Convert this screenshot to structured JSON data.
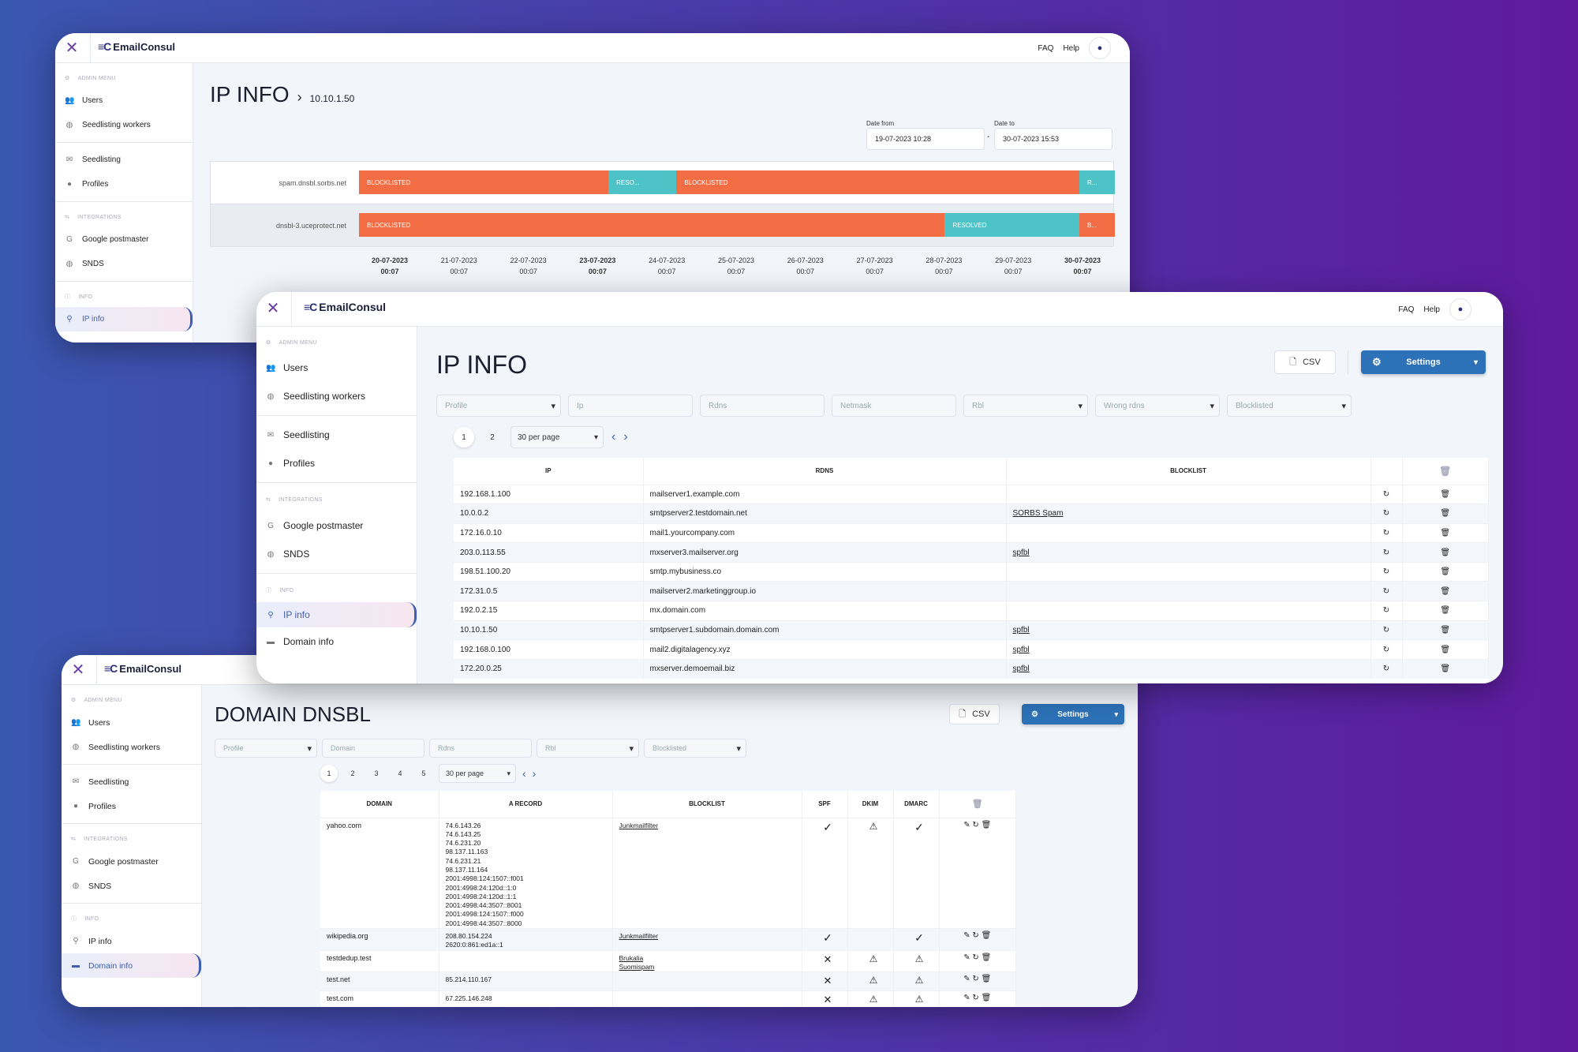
{
  "brand": "EmailConsul",
  "topbar": {
    "faq": "FAQ",
    "help": "Help"
  },
  "sidebar": {
    "admin_header": "ADMIN MENU",
    "users": "Users",
    "seedlisting_workers": "Seedlisting workers",
    "seedlisting": "Seedlisting",
    "profiles": "Profiles",
    "integrations_header": "INTEGRATIONS",
    "google_postmaster": "Google postmaster",
    "snds": "SNDS",
    "info_header": "INFO",
    "ip_info": "IP info",
    "domain_info": "Domain info"
  },
  "window1": {
    "title": "IP INFO",
    "breadcrumb": "10.10.1.50",
    "date_from_label": "Date from",
    "date_from": "19-07-2023 10:28",
    "date_to_label": "Date to",
    "date_to": "30-07-2023 15:53",
    "rows": [
      {
        "label": "spam.dnsbl.sorbs.net",
        "segments": [
          {
            "status": "BLOCKLISTED",
            "from": 0,
            "to": 0.33
          },
          {
            "status": "RESO...",
            "from": 0.33,
            "to": 0.42
          },
          {
            "status": "BLOCKLISTED",
            "from": 0.42,
            "to": 0.953
          },
          {
            "status": "R...",
            "from": 0.953,
            "to": 1
          }
        ]
      },
      {
        "label": "dnsbl-3.uceprotect.net",
        "segments": [
          {
            "status": "BLOCKLISTED",
            "from": 0,
            "to": 0.775
          },
          {
            "status": "RESOLVED",
            "from": 0.775,
            "to": 0.953
          },
          {
            "status": "B...",
            "from": 0.953,
            "to": 1
          }
        ]
      }
    ],
    "ticks": [
      {
        "date": "20-07-2023",
        "time": "00:07",
        "bold": true
      },
      {
        "date": "21-07-2023",
        "time": "00:07",
        "bold": false
      },
      {
        "date": "22-07-2023",
        "time": "00:07",
        "bold": false
      },
      {
        "date": "23-07-2023",
        "time": "00:07",
        "bold": true
      },
      {
        "date": "24-07-2023",
        "time": "00:07",
        "bold": false
      },
      {
        "date": "25-07-2023",
        "time": "00:07",
        "bold": false
      },
      {
        "date": "26-07-2023",
        "time": "00:07",
        "bold": false
      },
      {
        "date": "27-07-2023",
        "time": "00:07",
        "bold": false
      },
      {
        "date": "28-07-2023",
        "time": "00:07",
        "bold": false
      },
      {
        "date": "29-07-2023",
        "time": "00:07",
        "bold": false
      },
      {
        "date": "30-07-2023",
        "time": "00:07",
        "bold": true
      }
    ]
  },
  "window2": {
    "title": "IP INFO",
    "csv": "CSV",
    "settings": "Settings",
    "filters": {
      "profile": "Profile",
      "ip": "Ip",
      "rdns": "Rdns",
      "netmask": "Netmask",
      "rbl": "Rbl",
      "wrong_rdns": "Wrong rdns",
      "blocklisted": "Blocklisted"
    },
    "pages": [
      "1",
      "2"
    ],
    "per_page": "30 per page",
    "columns": {
      "ip": "IP",
      "rdns": "RDNS",
      "blocklist": "BLOCKLIST"
    },
    "rows": [
      {
        "ip": "192.168.1.100",
        "rdns": "mailserver1.example.com",
        "blocklist": ""
      },
      {
        "ip": "10.0.0.2",
        "rdns": "smtpserver2.testdomain.net",
        "blocklist": "SORBS Spam"
      },
      {
        "ip": "172.16.0.10",
        "rdns": "mail1.yourcompany.com",
        "blocklist": ""
      },
      {
        "ip": "203.0.113.55",
        "rdns": "mxserver3.mailserver.org",
        "blocklist": "spfbl"
      },
      {
        "ip": "198.51.100.20",
        "rdns": "smtp.mybusiness.co",
        "blocklist": ""
      },
      {
        "ip": "172.31.0.5",
        "rdns": "mailserver2.marketinggroup.io",
        "blocklist": ""
      },
      {
        "ip": "192.0.2.15",
        "rdns": "mx.domain.com",
        "blocklist": ""
      },
      {
        "ip": "10.10.1.50",
        "rdns": "smtpserver1.subdomain.domain.com",
        "blocklist": "spfbl"
      },
      {
        "ip": "192.168.0.100",
        "rdns": "mail2.digitalagency.xyz",
        "blocklist": "spfbl"
      },
      {
        "ip": "172.20.0.25",
        "rdns": "mxserver.demoemail.biz",
        "blocklist": "spfbl"
      }
    ]
  },
  "window3": {
    "title": "DOMAIN DNSBL",
    "csv": "CSV",
    "settings": "Settings",
    "filters": {
      "profile": "Profile",
      "domain": "Domain",
      "rdns": "Rdns",
      "rbl": "Rbl",
      "blocklisted": "Blocklisted"
    },
    "pages": [
      "1",
      "2",
      "3",
      "4",
      "5"
    ],
    "per_page": "30 per page",
    "columns": {
      "domain": "DOMAIN",
      "a_record": "A RECORD",
      "blocklist": "BLOCKLIST",
      "spf": "SPF",
      "dkim": "DKIM",
      "dmarc": "DMARC"
    },
    "rows": [
      {
        "domain": "yahoo.com",
        "a_record": "74.6.143.26\n74.6.143.25\n74.6.231.20\n98.137.11.163\n74.6.231.21\n98.137.11.164\n2001:4998:124:1507::f001\n2001:4998:24:120d::1:0\n2001:4998:24:120d::1:1\n2001:4998:44:3507::8001\n2001:4998:124:1507::f000\n2001:4998:44:3507::8000",
        "blocklist": "Junkmailfilter",
        "spf": "check",
        "dkim": "warn",
        "dmarc": "check"
      },
      {
        "domain": "wikipedia.org",
        "a_record": "208.80.154.224\n2620:0:861:ed1a::1",
        "blocklist": "Junkmailfilter",
        "spf": "check",
        "dkim": "",
        "dmarc": "check"
      },
      {
        "domain": "testdedup.test",
        "a_record": "",
        "blocklist": "Brukalia\nSuomispam",
        "spf": "cross",
        "dkim": "warn",
        "dmarc": "warn"
      },
      {
        "domain": "test.net",
        "a_record": "85.214.110.167",
        "blocklist": "",
        "spf": "cross",
        "dkim": "warn",
        "dmarc": "warn"
      },
      {
        "domain": "test.com",
        "a_record": "67.225.146.248",
        "blocklist": "",
        "spf": "cross",
        "dkim": "warn",
        "dmarc": "warn"
      }
    ]
  }
}
